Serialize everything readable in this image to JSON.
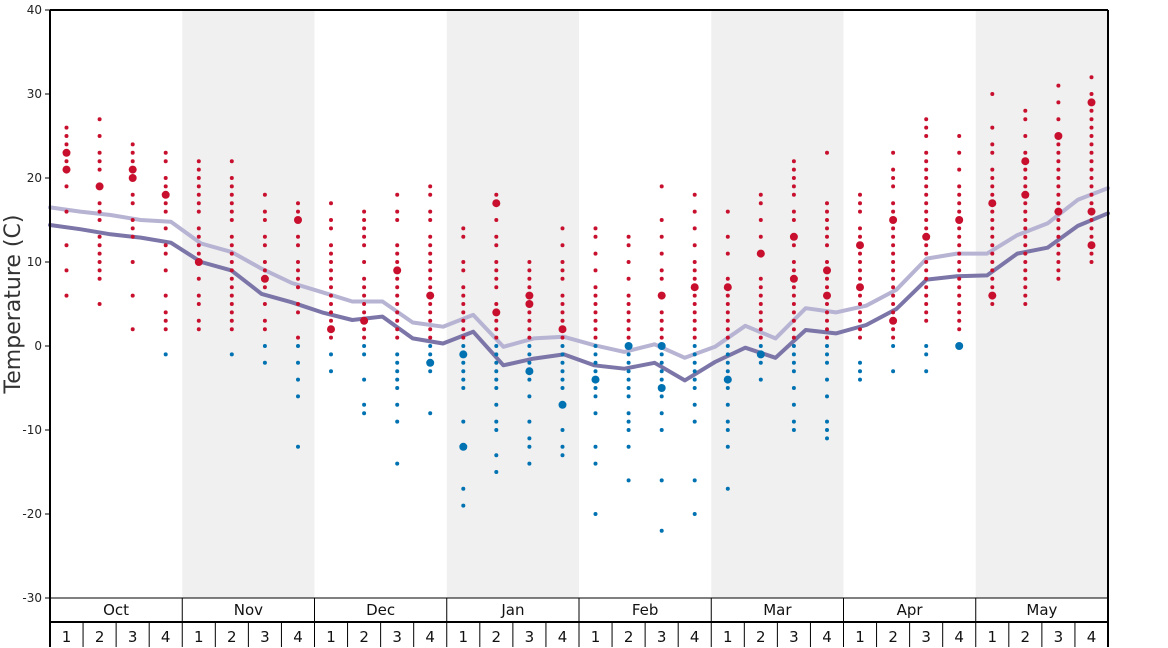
{
  "chart_data": {
    "type": "scatter",
    "ylabel": "Temperature (C)",
    "ylim": [
      -30,
      40
    ],
    "yticks": [
      "40",
      "30",
      "20",
      "10",
      "0",
      "-10",
      "-20",
      "-30"
    ],
    "months": [
      "Oct",
      "Nov",
      "Dec",
      "Jan",
      "Feb",
      "Mar",
      "Apr",
      "May"
    ],
    "weeks": [
      "1",
      "2",
      "3",
      "4"
    ],
    "colors": {
      "warm": "#c8102e",
      "cold": "#0072b2",
      "line_light": "#b7b3d3",
      "line_dark": "#7b75a8",
      "band": "#f0f0f0"
    },
    "series": [
      {
        "values": [
          16.5,
          16.0,
          15.6,
          15.0,
          14.8,
          12.2,
          11.2,
          9.2,
          7.5,
          6.4,
          5.3,
          5.3,
          2.8,
          2.3,
          3.7,
          -0.1,
          0.9,
          1.1,
          0.1,
          -0.7,
          0.2,
          -1.4,
          -0.1,
          2.4,
          0.9,
          4.5,
          4.0,
          4.8,
          6.7,
          10.4,
          11.0,
          11.0,
          13.2,
          14.6,
          17.4,
          18.8
        ]
      },
      {
        "values": [
          14.4,
          13.9,
          13.3,
          12.9,
          12.3,
          10.0,
          9.0,
          6.2,
          5.2,
          4.0,
          3.1,
          3.5,
          0.9,
          0.3,
          1.7,
          -2.3,
          -1.5,
          -1.0,
          -2.3,
          -2.7,
          -2.0,
          -4.1,
          -1.9,
          -0.2,
          -1.4,
          1.9,
          1.5,
          2.5,
          4.4,
          7.9,
          8.3,
          8.4,
          11.0,
          11.7,
          14.3,
          15.8
        ]
      }
    ],
    "points": [
      {
        "week": 1,
        "t": [
          26,
          25,
          24,
          23,
          22,
          21,
          19,
          16,
          12,
          9,
          6
        ],
        "big": [
          23,
          21
        ]
      },
      {
        "week": 2,
        "t": [
          27,
          25,
          23,
          22,
          21,
          19,
          17,
          16,
          15,
          13,
          12,
          11,
          10,
          9,
          8,
          5
        ],
        "big": [
          19
        ]
      },
      {
        "week": 3,
        "t": [
          24,
          23,
          22,
          21,
          20,
          18,
          17,
          15,
          14,
          13,
          10,
          6,
          2
        ],
        "big": [
          21,
          20
        ]
      },
      {
        "week": 4,
        "t": [
          23,
          22,
          20,
          19,
          18,
          17,
          16,
          14,
          12,
          11,
          9,
          6,
          4,
          3,
          2,
          -1
        ],
        "big": [
          18
        ]
      },
      {
        "week": 5,
        "t": [
          22,
          21,
          20,
          19,
          18,
          17,
          16,
          14,
          13,
          12,
          11,
          10,
          8,
          6,
          5,
          3,
          2
        ],
        "big": [
          10
        ]
      },
      {
        "week": 6,
        "t": [
          22,
          20,
          19,
          18,
          17,
          16,
          15,
          13,
          12,
          11,
          10,
          9,
          8,
          7,
          6,
          5,
          4,
          3,
          2,
          -1
        ],
        "big": []
      },
      {
        "week": 7,
        "t": [
          18,
          16,
          15,
          13,
          12,
          10,
          9,
          7,
          5,
          3,
          2,
          0,
          -2
        ],
        "big": [
          8
        ]
      },
      {
        "week": 8,
        "t": [
          17,
          16,
          15,
          13,
          12,
          10,
          9,
          8,
          7,
          5,
          4,
          1,
          0,
          -2,
          -4,
          -6,
          -12
        ],
        "big": [
          15
        ]
      },
      {
        "week": 9,
        "t": [
          17,
          15,
          14,
          12,
          11,
          10,
          9,
          8,
          7,
          6,
          5,
          4,
          3,
          2,
          1,
          -1,
          -3
        ],
        "big": [
          2
        ]
      },
      {
        "week": 10,
        "t": [
          16,
          15,
          14,
          13,
          12,
          10,
          8,
          7,
          6,
          5,
          4,
          3,
          2,
          1,
          0,
          -1,
          -4,
          -7,
          -8
        ],
        "big": [
          3
        ]
      },
      {
        "week": 11,
        "t": [
          18,
          16,
          15,
          12,
          11,
          10,
          9,
          8,
          7,
          6,
          5,
          4,
          3,
          2,
          1,
          -1,
          -2,
          -3,
          -4,
          -5,
          -7,
          -9,
          -14
        ],
        "big": [
          9
        ]
      },
      {
        "week": 12,
        "t": [
          19,
          18,
          16,
          15,
          13,
          12,
          11,
          10,
          9,
          8,
          7,
          6,
          5,
          4,
          3,
          2,
          1,
          0,
          -1,
          -2,
          -3,
          -8
        ],
        "big": [
          6,
          -2
        ]
      },
      {
        "week": 13,
        "t": [
          14,
          13,
          10,
          9,
          7,
          6,
          5,
          4,
          3,
          2,
          1,
          0,
          -1,
          -2,
          -3,
          -4,
          -5,
          -9,
          -12,
          -17,
          -19
        ],
        "big": [
          -1,
          -12
        ]
      },
      {
        "week": 14,
        "t": [
          18,
          17,
          15,
          13,
          12,
          10,
          9,
          8,
          7,
          5,
          4,
          3,
          2,
          1,
          0,
          -1,
          -2,
          -3,
          -4,
          -5,
          -7,
          -9,
          -10,
          -13,
          -15
        ],
        "big": [
          17,
          4
        ]
      },
      {
        "week": 15,
        "t": [
          10,
          9,
          8,
          7,
          6,
          5,
          4,
          3,
          2,
          1,
          0,
          -1,
          -2,
          -3,
          -4,
          -6,
          -9,
          -11,
          -12,
          -14
        ],
        "big": [
          6,
          5,
          -3
        ]
      },
      {
        "week": 16,
        "t": [
          14,
          12,
          10,
          9,
          8,
          6,
          5,
          4,
          3,
          2,
          1,
          0,
          -1,
          -2,
          -3,
          -4,
          -5,
          -7,
          -10,
          -12,
          -13
        ],
        "big": [
          2,
          -7
        ]
      },
      {
        "week": 17,
        "t": [
          14,
          13,
          11,
          9,
          7,
          6,
          5,
          4,
          3,
          2,
          1,
          0,
          -1,
          -2,
          -3,
          -4,
          -5,
          -6,
          -8,
          -12,
          -14,
          -20
        ],
        "big": [
          -4
        ]
      },
      {
        "week": 18,
        "t": [
          13,
          12,
          10,
          8,
          6,
          5,
          4,
          3,
          2,
          1,
          0,
          -1,
          -2,
          -3,
          -4,
          -5,
          -6,
          -8,
          -9,
          -10,
          -12,
          -16
        ],
        "big": [
          0
        ]
      },
      {
        "week": 19,
        "t": [
          19,
          15,
          13,
          11,
          9,
          8,
          6,
          4,
          3,
          2,
          1,
          0,
          -1,
          -2,
          -3,
          -4,
          -5,
          -6,
          -8,
          -10,
          -16,
          -22
        ],
        "big": [
          6,
          0,
          -5
        ]
      },
      {
        "week": 20,
        "t": [
          18,
          16,
          14,
          12,
          10,
          9,
          8,
          7,
          6,
          5,
          4,
          3,
          2,
          1,
          0,
          -1,
          -2,
          -3,
          -4,
          -5,
          -7,
          -9,
          -16,
          -20
        ],
        "big": [
          7
        ]
      },
      {
        "week": 21,
        "t": [
          16,
          13,
          11,
          8,
          7,
          6,
          5,
          4,
          3,
          2,
          1,
          0,
          -1,
          -2,
          -3,
          -4,
          -5,
          -7,
          -9,
          -10,
          -12,
          -17
        ],
        "big": [
          7,
          -4
        ]
      },
      {
        "week": 22,
        "t": [
          18,
          17,
          15,
          13,
          11,
          8,
          7,
          6,
          5,
          4,
          3,
          2,
          1,
          0,
          -1,
          -2,
          -4
        ],
        "big": [
          11,
          -1
        ]
      },
      {
        "week": 23,
        "t": [
          22,
          21,
          20,
          19,
          18,
          16,
          15,
          13,
          12,
          10,
          9,
          8,
          7,
          6,
          5,
          4,
          3,
          2,
          1,
          0,
          -1,
          -2,
          -3,
          -5,
          -7,
          -9,
          -10
        ],
        "big": [
          13,
          8
        ]
      },
      {
        "week": 24,
        "t": [
          23,
          17,
          16,
          15,
          14,
          13,
          12,
          10,
          9,
          8,
          7,
          6,
          5,
          4,
          3,
          2,
          1,
          0,
          -1,
          -2,
          -4,
          -6,
          -9,
          -10,
          -11
        ],
        "big": [
          9,
          6
        ]
      },
      {
        "week": 25,
        "t": [
          18,
          17,
          16,
          14,
          13,
          12,
          11,
          10,
          9,
          8,
          7,
          6,
          5,
          4,
          3,
          2,
          1,
          -2,
          -3,
          -4
        ],
        "big": [
          12,
          7
        ]
      },
      {
        "week": 26,
        "t": [
          23,
          21,
          20,
          19,
          17,
          16,
          15,
          14,
          13,
          12,
          11,
          10,
          9,
          8,
          7,
          6,
          5,
          4,
          3,
          2,
          1,
          0,
          -3
        ],
        "big": [
          15,
          3
        ]
      },
      {
        "week": 27,
        "t": [
          27,
          26,
          25,
          23,
          22,
          21,
          20,
          19,
          18,
          17,
          16,
          15,
          14,
          13,
          12,
          11,
          10,
          9,
          8,
          7,
          6,
          5,
          4,
          3,
          0,
          -1,
          -3
        ],
        "big": [
          13
        ]
      },
      {
        "week": 28,
        "t": [
          25,
          23,
          21,
          19,
          18,
          17,
          16,
          15,
          14,
          13,
          12,
          11,
          10,
          9,
          8,
          7,
          6,
          5,
          4,
          3,
          2,
          0
        ],
        "big": [
          15,
          0
        ]
      },
      {
        "week": 29,
        "t": [
          30,
          26,
          24,
          23,
          21,
          20,
          19,
          18,
          17,
          16,
          15,
          14,
          13,
          12,
          11,
          10,
          9,
          8,
          7,
          6,
          5
        ],
        "big": [
          17,
          6
        ]
      },
      {
        "week": 30,
        "t": [
          28,
          27,
          25,
          23,
          22,
          21,
          20,
          19,
          18,
          17,
          16,
          15,
          14,
          13,
          12,
          11,
          10,
          9,
          8,
          7,
          6,
          5
        ],
        "big": [
          18,
          22
        ]
      },
      {
        "week": 31,
        "t": [
          31,
          29,
          27,
          25,
          24,
          23,
          22,
          21,
          20,
          19,
          18,
          17,
          16,
          15,
          14,
          13,
          12,
          11,
          10,
          9,
          8
        ],
        "big": [
          25,
          16
        ]
      },
      {
        "week": 32,
        "t": [
          32,
          30,
          29,
          28,
          27,
          26,
          25,
          24,
          23,
          22,
          21,
          20,
          19,
          18,
          17,
          16,
          15,
          14,
          13,
          12,
          11,
          10
        ],
        "big": [
          29,
          16,
          12
        ]
      }
    ]
  }
}
